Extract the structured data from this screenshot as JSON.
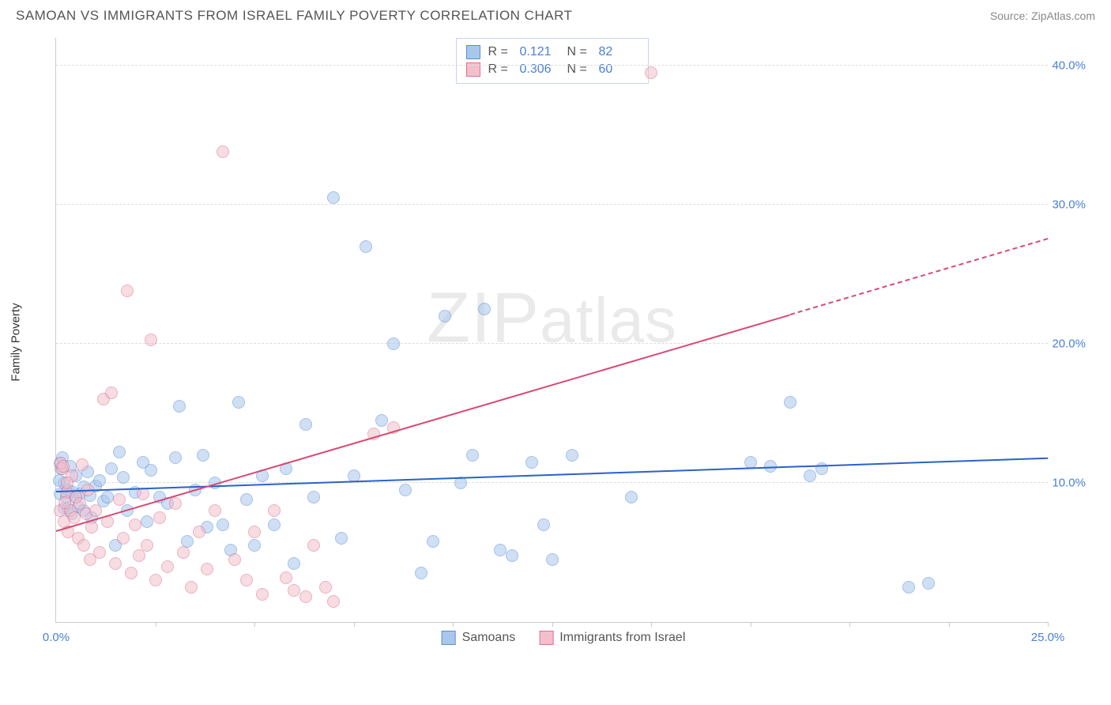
{
  "header": {
    "title": "SAMOAN VS IMMIGRANTS FROM ISRAEL FAMILY POVERTY CORRELATION CHART",
    "source_prefix": "Source: ",
    "source_name": "ZipAtlas.com"
  },
  "watermark": "ZIPatlas",
  "chart": {
    "type": "scatter",
    "ylabel": "Family Poverty",
    "xlim": [
      0,
      25
    ],
    "ylim": [
      0,
      42
    ],
    "background_color": "#ffffff",
    "grid_color": "#dddddd",
    "axis_color": "#cccccc",
    "yticks": [
      {
        "v": 10,
        "label": "10.0%"
      },
      {
        "v": 20,
        "label": "20.0%"
      },
      {
        "v": 30,
        "label": "30.0%"
      },
      {
        "v": 40,
        "label": "40.0%"
      }
    ],
    "xticks_minor": [
      2.5,
      5,
      7.5,
      10,
      12.5,
      15,
      17.5,
      20,
      22.5,
      25
    ],
    "xtick_labels": [
      {
        "v": 0,
        "label": "0.0%",
        "color": "#4a7fd8"
      },
      {
        "v": 25,
        "label": "25.0%",
        "color": "#4a7fd8"
      }
    ],
    "ytick_color": "#4a7fd8",
    "marker_radius": 8,
    "marker_opacity": 0.55,
    "marker_border_opacity": 0.9,
    "series": [
      {
        "name": "Samoans",
        "color_fill": "#a9c6ec",
        "color_border": "#5b8fd6",
        "trend": {
          "x1": 0,
          "y1": 9.3,
          "x2": 25,
          "y2": 11.7,
          "color": "#2962c9",
          "dash_from_x": null
        },
        "stats": {
          "R": "0.121",
          "N": "82"
        },
        "points": [
          [
            0.1,
            9.2
          ],
          [
            0.1,
            11.4
          ],
          [
            0.2,
            8.2
          ],
          [
            0.2,
            10.0
          ],
          [
            0.25,
            9.0
          ],
          [
            0.3,
            9.5
          ],
          [
            0.3,
            8.2
          ],
          [
            0.35,
            11.2
          ],
          [
            0.4,
            7.8
          ],
          [
            0.4,
            9.4
          ],
          [
            0.5,
            9.0
          ],
          [
            0.5,
            10.5
          ],
          [
            0.55,
            8.3
          ],
          [
            0.6,
            9.2
          ],
          [
            0.7,
            8.0
          ],
          [
            0.7,
            9.7
          ],
          [
            0.8,
            10.8
          ],
          [
            0.85,
            9.1
          ],
          [
            0.9,
            7.5
          ],
          [
            1.0,
            9.8
          ],
          [
            1.1,
            10.2
          ],
          [
            1.2,
            8.7
          ],
          [
            1.3,
            9.0
          ],
          [
            1.4,
            11.0
          ],
          [
            1.5,
            5.5
          ],
          [
            1.6,
            12.2
          ],
          [
            1.7,
            10.4
          ],
          [
            1.8,
            8.0
          ],
          [
            2.0,
            9.3
          ],
          [
            2.2,
            11.5
          ],
          [
            2.3,
            7.2
          ],
          [
            2.4,
            10.9
          ],
          [
            2.6,
            9.0
          ],
          [
            2.8,
            8.5
          ],
          [
            3.0,
            11.8
          ],
          [
            3.1,
            15.5
          ],
          [
            3.3,
            5.8
          ],
          [
            3.5,
            9.5
          ],
          [
            3.7,
            12.0
          ],
          [
            3.8,
            6.8
          ],
          [
            4.0,
            10.0
          ],
          [
            4.2,
            7.0
          ],
          [
            4.4,
            5.2
          ],
          [
            4.6,
            15.8
          ],
          [
            4.8,
            8.8
          ],
          [
            5.0,
            5.5
          ],
          [
            5.2,
            10.5
          ],
          [
            5.5,
            7.0
          ],
          [
            5.8,
            11.0
          ],
          [
            6.0,
            4.2
          ],
          [
            6.3,
            14.2
          ],
          [
            6.5,
            9.0
          ],
          [
            7.0,
            30.5
          ],
          [
            7.2,
            6.0
          ],
          [
            7.5,
            10.5
          ],
          [
            7.8,
            27.0
          ],
          [
            8.2,
            14.5
          ],
          [
            8.5,
            20.0
          ],
          [
            8.8,
            9.5
          ],
          [
            9.2,
            3.5
          ],
          [
            9.5,
            5.8
          ],
          [
            9.8,
            22.0
          ],
          [
            10.2,
            10.0
          ],
          [
            10.5,
            12.0
          ],
          [
            10.8,
            22.5
          ],
          [
            11.2,
            5.2
          ],
          [
            11.5,
            4.8
          ],
          [
            12.0,
            11.5
          ],
          [
            12.3,
            7.0
          ],
          [
            12.5,
            4.5
          ],
          [
            13.0,
            12.0
          ],
          [
            14.5,
            9.0
          ],
          [
            17.5,
            11.5
          ],
          [
            18.0,
            11.2
          ],
          [
            18.5,
            15.8
          ],
          [
            19.0,
            10.5
          ],
          [
            19.3,
            11.0
          ],
          [
            21.5,
            2.5
          ],
          [
            22.0,
            2.8
          ],
          [
            0.15,
            11.8
          ],
          [
            0.12,
            11.0
          ],
          [
            0.08,
            10.2
          ]
        ]
      },
      {
        "name": "Immigrants from Israel",
        "color_fill": "#f2c0cc",
        "color_border": "#e0708f",
        "trend": {
          "x1": 0,
          "y1": 6.5,
          "x2": 25,
          "y2": 27.5,
          "color": "#d84a72",
          "dash_from_x": 18.5
        },
        "stats": {
          "R": "0.306",
          "N": "60"
        },
        "points": [
          [
            0.1,
            8.0
          ],
          [
            0.15,
            11.0
          ],
          [
            0.2,
            7.2
          ],
          [
            0.25,
            9.3
          ],
          [
            0.3,
            6.5
          ],
          [
            0.35,
            8.0
          ],
          [
            0.4,
            10.5
          ],
          [
            0.45,
            7.5
          ],
          [
            0.5,
            9.0
          ],
          [
            0.55,
            6.0
          ],
          [
            0.6,
            8.5
          ],
          [
            0.65,
            11.3
          ],
          [
            0.7,
            5.5
          ],
          [
            0.75,
            7.8
          ],
          [
            0.8,
            9.5
          ],
          [
            0.85,
            4.5
          ],
          [
            0.9,
            6.8
          ],
          [
            1.0,
            8.0
          ],
          [
            1.1,
            5.0
          ],
          [
            1.2,
            16.0
          ],
          [
            1.3,
            7.2
          ],
          [
            1.4,
            16.5
          ],
          [
            1.5,
            4.2
          ],
          [
            1.6,
            8.8
          ],
          [
            1.7,
            6.0
          ],
          [
            1.8,
            23.8
          ],
          [
            1.9,
            3.5
          ],
          [
            2.0,
            7.0
          ],
          [
            2.1,
            4.8
          ],
          [
            2.2,
            9.2
          ],
          [
            2.3,
            5.5
          ],
          [
            2.4,
            20.3
          ],
          [
            2.5,
            3.0
          ],
          [
            2.6,
            7.5
          ],
          [
            2.8,
            4.0
          ],
          [
            3.0,
            8.5
          ],
          [
            3.2,
            5.0
          ],
          [
            3.4,
            2.5
          ],
          [
            3.6,
            6.5
          ],
          [
            3.8,
            3.8
          ],
          [
            4.0,
            8.0
          ],
          [
            4.2,
            33.8
          ],
          [
            4.5,
            4.5
          ],
          [
            4.8,
            3.0
          ],
          [
            5.0,
            6.5
          ],
          [
            5.2,
            2.0
          ],
          [
            5.5,
            8.0
          ],
          [
            5.8,
            3.2
          ],
          [
            6.0,
            2.3
          ],
          [
            6.3,
            1.8
          ],
          [
            6.5,
            5.5
          ],
          [
            6.8,
            2.5
          ],
          [
            7.0,
            1.5
          ],
          [
            8.0,
            13.5
          ],
          [
            8.5,
            14.0
          ],
          [
            15.0,
            39.5
          ],
          [
            0.12,
            11.4
          ],
          [
            0.18,
            11.2
          ],
          [
            0.22,
            8.6
          ],
          [
            0.28,
            10.0
          ]
        ]
      }
    ]
  },
  "legend_top": {
    "rows": [
      {
        "swatch_fill": "#a9c6ec",
        "swatch_border": "#5b8fd6",
        "r_label": "R =",
        "r": "0.121",
        "n_label": "N =",
        "n": "82"
      },
      {
        "swatch_fill": "#f2c0cc",
        "swatch_border": "#e0708f",
        "r_label": "R =",
        "r": "0.306",
        "n_label": "N =",
        "n": "60"
      }
    ],
    "value_color": "#4a7fd8",
    "label_color": "#555555"
  },
  "legend_bottom": {
    "items": [
      {
        "swatch_fill": "#a9c6ec",
        "swatch_border": "#5b8fd6",
        "label": "Samoans"
      },
      {
        "swatch_fill": "#f2c0cc",
        "swatch_border": "#e0708f",
        "label": "Immigrants from Israel"
      }
    ]
  }
}
